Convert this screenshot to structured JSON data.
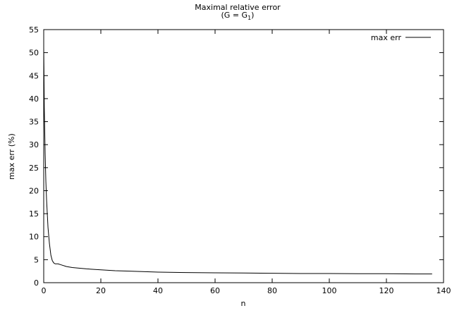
{
  "chart_data": {
    "type": "line",
    "title": "Maximal relative error",
    "subtitle": {
      "prefix": "(G = G",
      "subscript": "1",
      "suffix": ")"
    },
    "xlabel": "n",
    "ylabel": "max err (%)",
    "xlim": [
      0,
      140
    ],
    "ylim": [
      0,
      55
    ],
    "xticks": [
      0,
      20,
      40,
      60,
      80,
      100,
      120,
      140
    ],
    "yticks": [
      0,
      5,
      10,
      15,
      20,
      25,
      30,
      35,
      40,
      45,
      50,
      55
    ],
    "legend_position": "top-right",
    "grid": false,
    "series": [
      {
        "name": "max err",
        "color": "#000000",
        "x": [
          0,
          0.1,
          0.2,
          0.35,
          0.5,
          0.75,
          1,
          1.5,
          2,
          2.5,
          3,
          3.5,
          4,
          5,
          6,
          8,
          10,
          15,
          20,
          25,
          30,
          40,
          50,
          60,
          70,
          80,
          90,
          100,
          110,
          120,
          130,
          136
        ],
        "y": [
          51,
          45,
          38,
          33,
          28,
          22,
          18,
          12,
          8.5,
          6,
          4.8,
          4.3,
          4.1,
          4.1,
          3.9,
          3.5,
          3.3,
          3.0,
          2.8,
          2.6,
          2.5,
          2.3,
          2.2,
          2.15,
          2.1,
          2.05,
          2.0,
          2.0,
          1.95,
          1.95,
          1.9,
          1.9
        ]
      }
    ]
  }
}
